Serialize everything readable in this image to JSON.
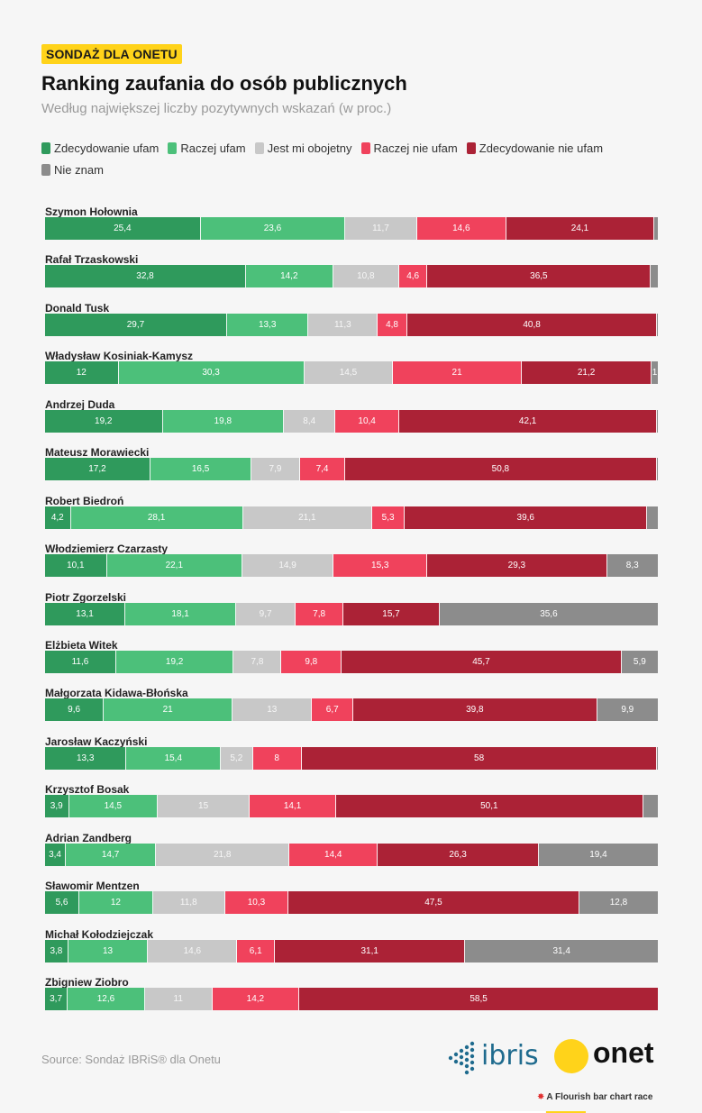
{
  "badge": "SONDAŻ DLA ONETU",
  "title": "Ranking zaufania do osób publicznych",
  "subtitle": "Według największej liczby pozytywnych wskazań (w proc.)",
  "colors": {
    "Zdecydowanie ufam": "#2f9a5c",
    "Raczej ufam": "#4cc07a",
    "Jest mi obojetny": "#c8c8c8",
    "Raczej nie ufam": "#f0425c",
    "Zdecydowanie nie ufam": "#ab2236",
    "Nie znam": "#8c8c8c"
  },
  "chart_data": {
    "type": "bar",
    "orientation": "horizontal-stacked-100",
    "title": "Ranking zaufania do osób publicznych",
    "subtitle": "Według największej liczby pozytywnych wskazań (w proc.)",
    "legend_position": "top-left",
    "categories": [
      "Szymon Hołownia",
      "Rafał Trzaskowski",
      "Donald Tusk",
      "Władysław Kosiniak-Kamysz",
      "Andrzej Duda",
      "Mateusz Morawiecki",
      "Robert Biedroń",
      "Włodziemierz Czarzasty",
      "Piotr Zgorzelski",
      "Elżbieta Witek",
      "Małgorzata Kidawa-Błońska",
      "Jarosław Kaczyński",
      "Krzysztof Bosak",
      "Adrian Zandberg",
      "Sławomir Mentzen",
      "Michał Kołodziejczak",
      "Zbigniew Ziobro"
    ],
    "series": [
      {
        "name": "Zdecydowanie ufam",
        "values": [
          25.4,
          32.8,
          29.7,
          12,
          19.2,
          17.2,
          4.2,
          10.1,
          13.1,
          11.6,
          9.6,
          13.3,
          3.9,
          3.4,
          5.6,
          3.8,
          3.7
        ]
      },
      {
        "name": "Raczej ufam",
        "values": [
          23.6,
          14.2,
          13.3,
          30.3,
          19.8,
          16.5,
          28.1,
          22.1,
          18.1,
          19.2,
          21,
          15.4,
          14.5,
          14.7,
          12,
          13,
          12.6
        ]
      },
      {
        "name": "Jest mi obojetny",
        "values": [
          11.7,
          10.8,
          11.3,
          14.5,
          8.4,
          7.9,
          21.1,
          14.9,
          9.7,
          7.8,
          13,
          5.2,
          15,
          21.8,
          11.8,
          14.6,
          11
        ]
      },
      {
        "name": "Raczej nie ufam",
        "values": [
          14.6,
          4.6,
          4.8,
          21,
          10.4,
          7.4,
          5.3,
          15.3,
          7.8,
          9.8,
          6.7,
          8,
          14.1,
          14.4,
          10.3,
          6.1,
          14.2
        ]
      },
      {
        "name": "Zdecydowanie nie ufam",
        "values": [
          24.1,
          36.5,
          40.8,
          21.2,
          42.1,
          50.8,
          39.6,
          29.3,
          15.7,
          45.7,
          39.8,
          58,
          50.1,
          26.3,
          47.5,
          31.1,
          58.5
        ]
      },
      {
        "name": "Nie znam",
        "values": [
          0.6,
          1.1,
          0.1,
          1,
          0.1,
          0.2,
          1.7,
          8.3,
          35.6,
          5.9,
          9.9,
          0.1,
          2.4,
          19.4,
          12.8,
          31.4,
          0
        ]
      }
    ],
    "value_labels": [
      [
        "25,4",
        "23,6",
        "11,7",
        "14,6",
        "24,1",
        ""
      ],
      [
        "32,8",
        "14,2",
        "10,8",
        "4,6",
        "36,5",
        ""
      ],
      [
        "29,7",
        "13,3",
        "11,3",
        "4,8",
        "40,8",
        ""
      ],
      [
        "12",
        "30,3",
        "14,5",
        "21",
        "21,2",
        "1"
      ],
      [
        "19,2",
        "19,8",
        "8,4",
        "10,4",
        "42,1",
        ""
      ],
      [
        "17,2",
        "16,5",
        "7,9",
        "7,4",
        "50,8",
        ""
      ],
      [
        "4,2",
        "28,1",
        "21,1",
        "5,3",
        "39,6",
        ""
      ],
      [
        "10,1",
        "22,1",
        "14,9",
        "15,3",
        "29,3",
        "8,3"
      ],
      [
        "13,1",
        "18,1",
        "9,7",
        "7,8",
        "15,7",
        "35,6"
      ],
      [
        "11,6",
        "19,2",
        "7,8",
        "9,8",
        "45,7",
        "5,9"
      ],
      [
        "9,6",
        "21",
        "13",
        "6,7",
        "39,8",
        "9,9"
      ],
      [
        "13,3",
        "15,4",
        "5,2",
        "8",
        "58",
        ""
      ],
      [
        "3,9",
        "14,5",
        "15",
        "14,1",
        "50,1",
        ""
      ],
      [
        "3,4",
        "14,7",
        "21,8",
        "14,4",
        "26,3",
        "19,4"
      ],
      [
        "5,6",
        "12",
        "11,8",
        "10,3",
        "47,5",
        "12,8"
      ],
      [
        "3,8",
        "13",
        "14,6",
        "6,1",
        "31,1",
        "31,4"
      ],
      [
        "3,7",
        "12,6",
        "11",
        "14,2",
        "58,5",
        ""
      ]
    ],
    "xlim": [
      0,
      100
    ]
  },
  "footer": {
    "source": "Source: Sondaż IBRiS® dla Onetu",
    "logo_ibris": "ibris",
    "logo_onet": "onet",
    "flourish": "A Flourish bar chart race"
  }
}
